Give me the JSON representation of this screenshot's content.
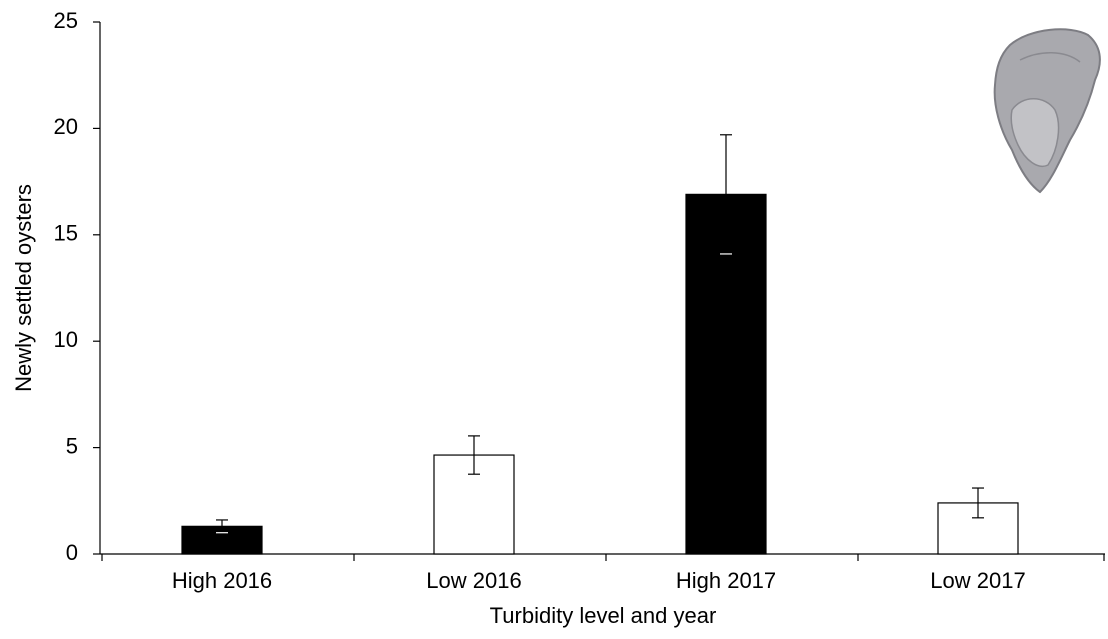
{
  "chart_data": {
    "type": "bar",
    "categories": [
      "High 2016",
      "Low 2016",
      "High 2017",
      "Low 2017"
    ],
    "values": [
      1.3,
      4.65,
      16.9,
      2.4
    ],
    "errors": [
      0.3,
      0.9,
      2.8,
      0.7
    ],
    "colors": [
      "#000000",
      "#ffffff",
      "#000000",
      "#ffffff"
    ],
    "edgecolor": "#000000",
    "xlabel": "Turbidity level and year",
    "ylabel": "Newly settled oysters",
    "ylim": [
      0,
      25
    ],
    "yticks": [
      0,
      5,
      10,
      15,
      20,
      25
    ]
  }
}
